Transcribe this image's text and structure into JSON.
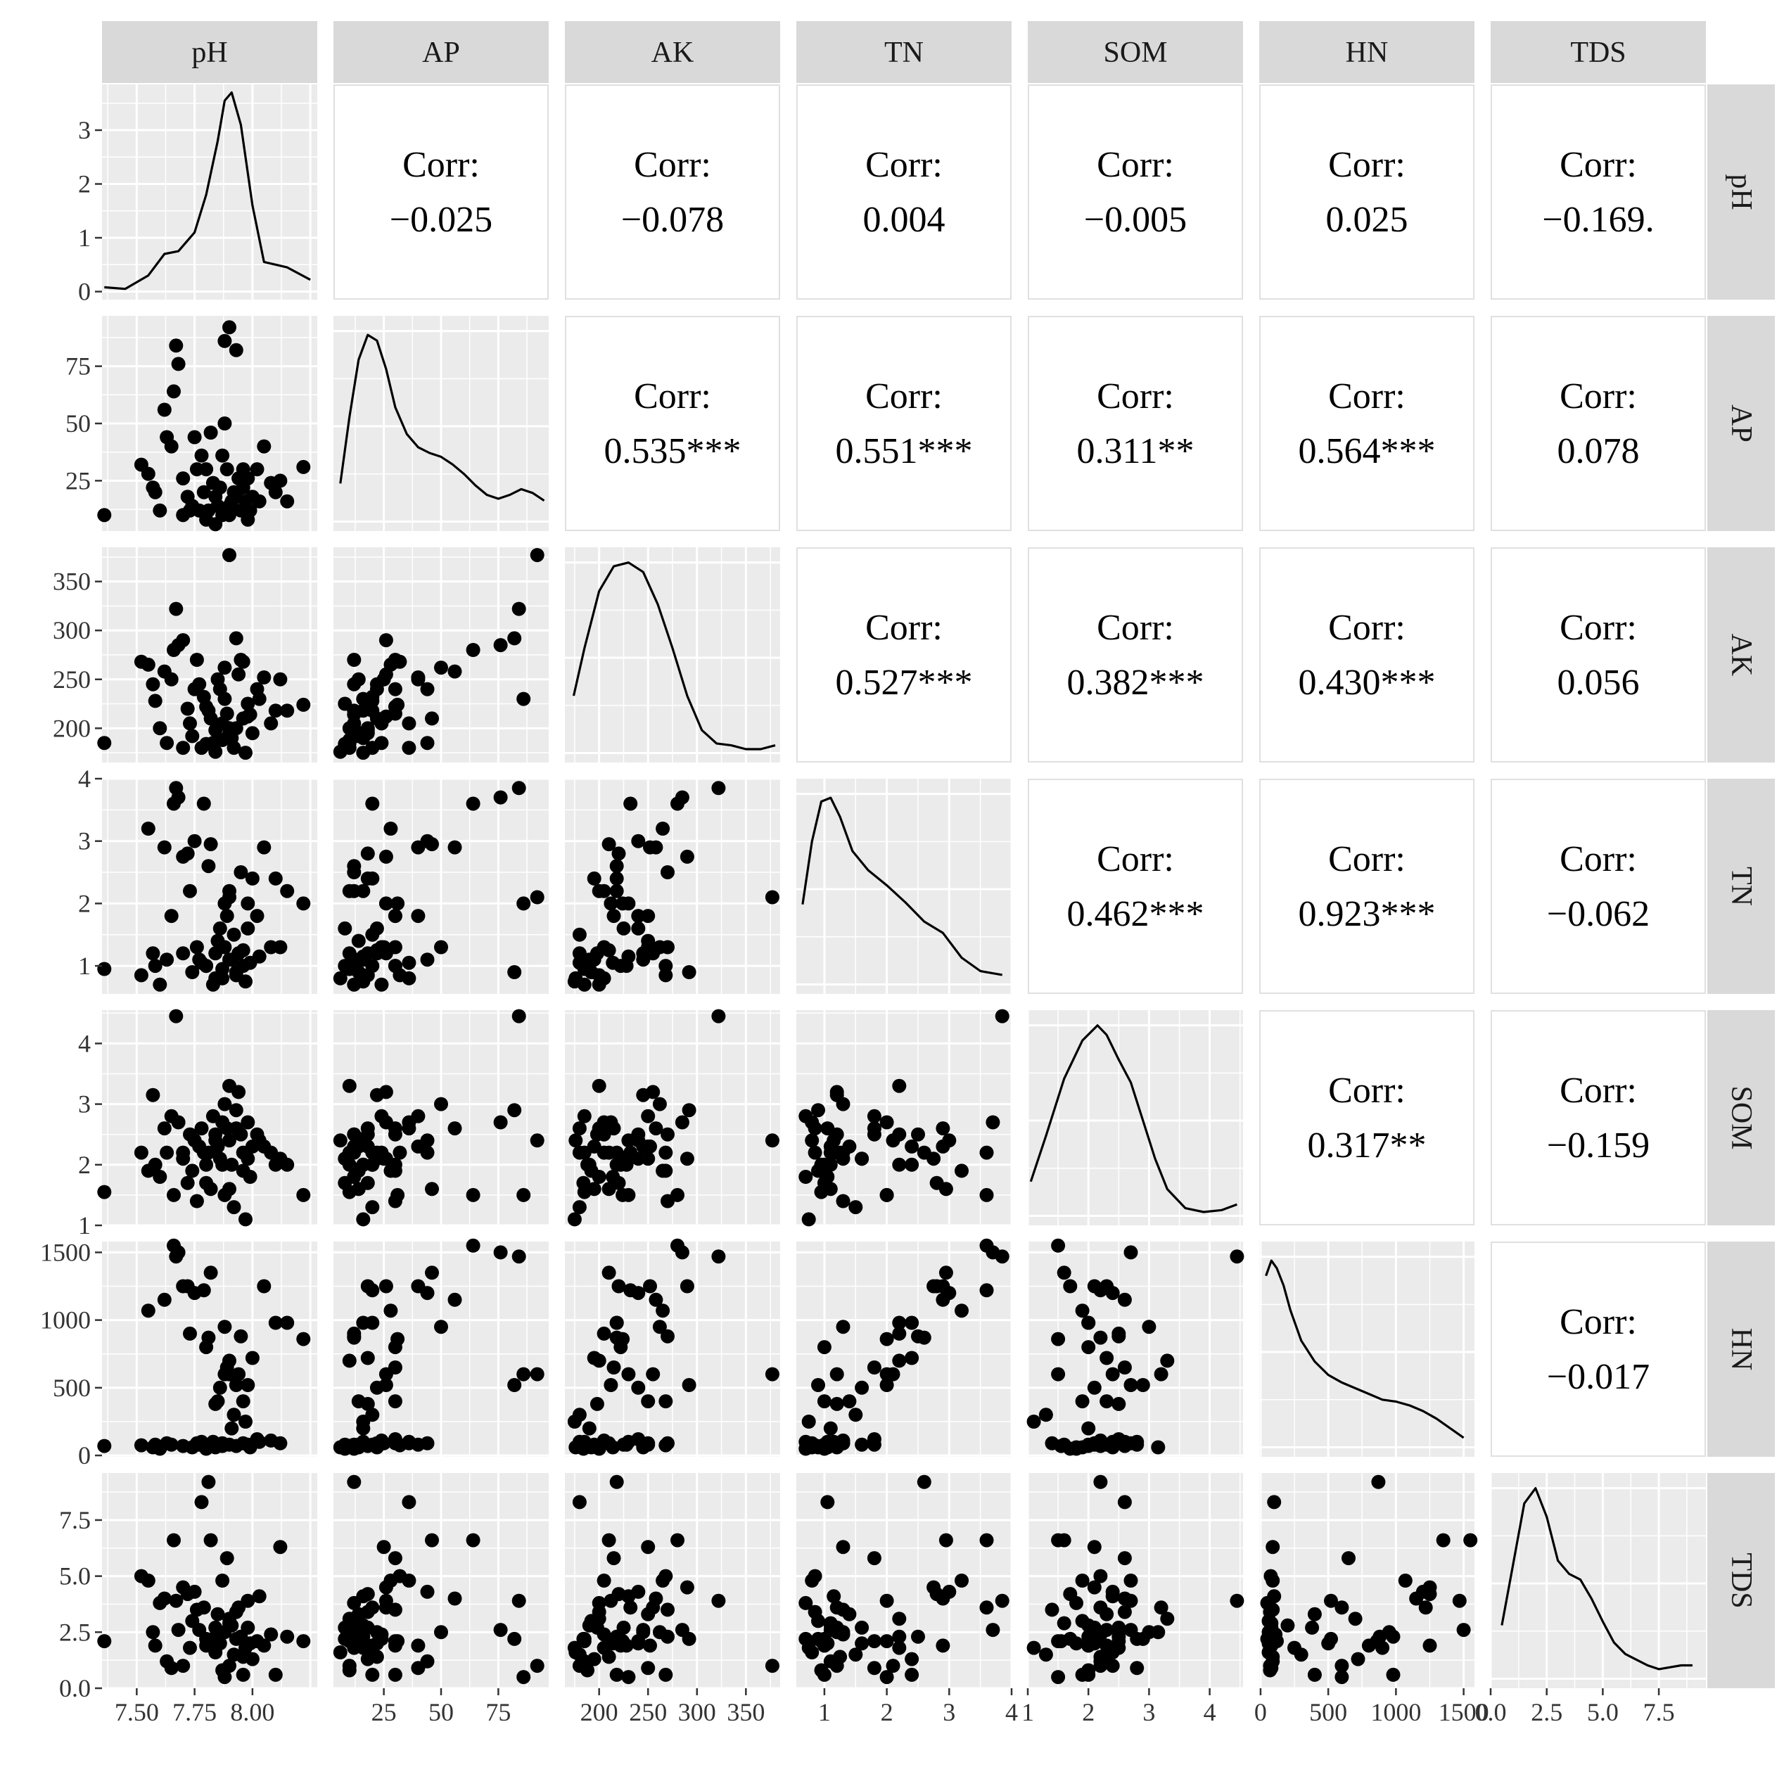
{
  "chart_data": {
    "type": "scatter-matrix",
    "variables": [
      "pH",
      "AP",
      "AK",
      "TN",
      "SOM",
      "HN",
      "TDS"
    ],
    "corr_prefix": "Corr:",
    "correlations": [
      {
        "row": "pH",
        "col": "AP",
        "value": "−0.025"
      },
      {
        "row": "pH",
        "col": "AK",
        "value": "−0.078"
      },
      {
        "row": "pH",
        "col": "TN",
        "value": "0.004"
      },
      {
        "row": "pH",
        "col": "SOM",
        "value": "−0.005"
      },
      {
        "row": "pH",
        "col": "HN",
        "value": "0.025"
      },
      {
        "row": "pH",
        "col": "TDS",
        "value": "−0.169."
      },
      {
        "row": "AP",
        "col": "AK",
        "value": "0.535***"
      },
      {
        "row": "AP",
        "col": "TN",
        "value": "0.551***"
      },
      {
        "row": "AP",
        "col": "SOM",
        "value": "0.311**"
      },
      {
        "row": "AP",
        "col": "HN",
        "value": "0.564***"
      },
      {
        "row": "AP",
        "col": "TDS",
        "value": "0.078"
      },
      {
        "row": "AK",
        "col": "TN",
        "value": "0.527***"
      },
      {
        "row": "AK",
        "col": "SOM",
        "value": "0.382***"
      },
      {
        "row": "AK",
        "col": "HN",
        "value": "0.430***"
      },
      {
        "row": "AK",
        "col": "TDS",
        "value": "0.056"
      },
      {
        "row": "TN",
        "col": "SOM",
        "value": "0.462***"
      },
      {
        "row": "TN",
        "col": "HN",
        "value": "0.923***"
      },
      {
        "row": "TN",
        "col": "TDS",
        "value": "−0.062"
      },
      {
        "row": "SOM",
        "col": "HN",
        "value": "0.317**"
      },
      {
        "row": "SOM",
        "col": "TDS",
        "value": "−0.159"
      },
      {
        "row": "HN",
        "col": "TDS",
        "value": "−0.017"
      }
    ],
    "axes": {
      "pH": {
        "range": [
          7.35,
          8.28
        ],
        "ticks": [
          7.5,
          7.75,
          8.0
        ],
        "tick_labels": [
          "7.50",
          "7.75",
          "8.00"
        ]
      },
      "AP": {
        "range": [
          3,
          97
        ],
        "ticks": [
          25,
          50,
          75
        ],
        "tick_labels": [
          "25",
          "50",
          "75"
        ]
      },
      "AK": {
        "range": [
          165,
          385
        ],
        "ticks": [
          200,
          250,
          300,
          350
        ],
        "tick_labels": [
          "200",
          "250",
          "300",
          "350"
        ]
      },
      "TN": {
        "range": [
          0.55,
          4.0
        ],
        "ticks": [
          1,
          2,
          3,
          4
        ],
        "tick_labels": [
          "1",
          "2",
          "3",
          "4"
        ]
      },
      "SOM": {
        "range": [
          1.0,
          4.55
        ],
        "ticks": [
          1,
          2,
          3,
          4
        ],
        "tick_labels": [
          "1",
          "2",
          "3",
          "4"
        ]
      },
      "HN": {
        "range": [
          -10,
          1580
        ],
        "ticks": [
          0,
          500,
          1000,
          1500
        ],
        "tick_labels": [
          "0",
          "500",
          "1000",
          "1500"
        ]
      },
      "TDS": {
        "range": [
          0.0,
          9.6
        ],
        "ticks": [
          0.0,
          2.5,
          5.0,
          7.5
        ],
        "tick_labels": [
          "0.0",
          "2.5",
          "5.0",
          "7.5"
        ]
      }
    },
    "density_ticks": {
      "ticks": [
        0,
        1,
        2,
        3
      ],
      "tick_labels": [
        "0",
        "1",
        "2",
        "3"
      ],
      "range": [
        -0.15,
        3.85
      ]
    },
    "densities": {
      "pH": {
        "x": [
          7.36,
          7.45,
          7.55,
          7.62,
          7.68,
          7.75,
          7.8,
          7.85,
          7.88,
          7.91,
          7.95,
          8.0,
          8.05,
          8.15,
          8.25
        ],
        "y": [
          0.08,
          0.05,
          0.3,
          0.7,
          0.75,
          1.1,
          1.8,
          2.8,
          3.55,
          3.7,
          3.1,
          1.6,
          0.55,
          0.45,
          0.22
        ]
      },
      "AP": {
        "x": [
          6,
          10,
          14,
          18,
          22,
          26,
          30,
          35,
          40,
          45,
          50,
          55,
          60,
          65,
          70,
          75,
          80,
          85,
          90,
          95
        ],
        "y": [
          0.2,
          0.55,
          0.85,
          0.98,
          0.95,
          0.8,
          0.6,
          0.46,
          0.39,
          0.36,
          0.34,
          0.3,
          0.25,
          0.19,
          0.14,
          0.12,
          0.14,
          0.17,
          0.15,
          0.11
        ]
      },
      "AK": {
        "x": [
          174,
          185,
          200,
          215,
          230,
          245,
          260,
          275,
          290,
          305,
          320,
          335,
          350,
          365,
          380
        ],
        "y": [
          0.3,
          0.55,
          0.85,
          0.98,
          1.0,
          0.95,
          0.78,
          0.55,
          0.3,
          0.12,
          0.05,
          0.04,
          0.02,
          0.02,
          0.04
        ]
      },
      "TN": {
        "x": [
          0.65,
          0.8,
          0.95,
          1.1,
          1.25,
          1.45,
          1.7,
          2.0,
          2.3,
          2.6,
          2.9,
          3.2,
          3.5,
          3.85
        ],
        "y": [
          0.42,
          0.75,
          0.96,
          0.98,
          0.88,
          0.7,
          0.6,
          0.52,
          0.43,
          0.33,
          0.27,
          0.14,
          0.07,
          0.05
        ]
      },
      "SOM": {
        "x": [
          1.05,
          1.3,
          1.6,
          1.9,
          2.15,
          2.3,
          2.5,
          2.7,
          2.9,
          3.1,
          3.3,
          3.6,
          3.9,
          4.2,
          4.45
        ],
        "y": [
          0.18,
          0.42,
          0.72,
          0.92,
          1.0,
          0.95,
          0.82,
          0.7,
          0.5,
          0.3,
          0.14,
          0.04,
          0.02,
          0.03,
          0.06
        ]
      },
      "HN": {
        "x": [
          40,
          80,
          120,
          170,
          220,
          300,
          400,
          500,
          600,
          700,
          800,
          900,
          1000,
          1100,
          1200,
          1300,
          1400,
          1500
        ],
        "y": [
          0.9,
          0.98,
          0.94,
          0.85,
          0.72,
          0.56,
          0.45,
          0.38,
          0.34,
          0.31,
          0.28,
          0.25,
          0.24,
          0.22,
          0.19,
          0.15,
          0.1,
          0.05
        ]
      },
      "TDS": {
        "x": [
          0.5,
          1.0,
          1.5,
          2.0,
          2.5,
          3.0,
          3.5,
          4.0,
          4.5,
          5.0,
          5.5,
          6.0,
          6.5,
          7.0,
          7.5,
          8.0,
          8.5,
          9.0
        ],
        "y": [
          0.28,
          0.6,
          0.92,
          1.0,
          0.85,
          0.62,
          0.55,
          0.52,
          0.42,
          0.3,
          0.19,
          0.13,
          0.1,
          0.07,
          0.05,
          0.06,
          0.07,
          0.07
        ]
      }
    },
    "observations": [
      {
        "pH": 7.36,
        "AP": 10,
        "AK": 185,
        "TN": 0.95,
        "SOM": 1.55,
        "HN": 70,
        "TDS": 2.1
      },
      {
        "pH": 7.52,
        "AP": 32,
        "AK": 268,
        "TN": 0.85,
        "SOM": 2.2,
        "HN": 75,
        "TDS": 5.0
      },
      {
        "pH": 7.55,
        "AP": 28,
        "AK": 265,
        "TN": 3.2,
        "SOM": 1.9,
        "HN": 1070,
        "TDS": 4.8
      },
      {
        "pH": 7.57,
        "AP": 22,
        "AK": 245,
        "TN": 1.2,
        "SOM": 3.15,
        "HN": 60,
        "TDS": 2.5
      },
      {
        "pH": 7.58,
        "AP": 20,
        "AK": 228,
        "TN": 1.0,
        "SOM": 2.0,
        "HN": 80,
        "TDS": 1.9
      },
      {
        "pH": 7.6,
        "AP": 12,
        "AK": 200,
        "TN": 0.7,
        "SOM": 1.8,
        "HN": 50,
        "TDS": 3.8
      },
      {
        "pH": 7.62,
        "AP": 56,
        "AK": 258,
        "TN": 2.9,
        "SOM": 2.6,
        "HN": 1150,
        "TDS": 4.0
      },
      {
        "pH": 7.63,
        "AP": 44,
        "AK": 185,
        "TN": 1.1,
        "SOM": 2.2,
        "HN": 90,
        "TDS": 1.2
      },
      {
        "pH": 7.65,
        "AP": 40,
        "AK": 250,
        "TN": 1.8,
        "SOM": 2.8,
        "HN": 80,
        "TDS": 0.9
      },
      {
        "pH": 7.66,
        "AP": 64,
        "AK": 280,
        "TN": 3.6,
        "SOM": 1.5,
        "HN": 1550,
        "TDS": 6.6
      },
      {
        "pH": 7.67,
        "AP": 84,
        "AK": 322,
        "TN": 3.85,
        "SOM": 4.45,
        "HN": 1470,
        "TDS": 3.9
      },
      {
        "pH": 7.68,
        "AP": 76,
        "AK": 285,
        "TN": 3.7,
        "SOM": 2.7,
        "HN": 1500,
        "TDS": 2.6
      },
      {
        "pH": 7.7,
        "AP": 26,
        "AK": 290,
        "TN": 2.75,
        "SOM": 2.1,
        "HN": 1250,
        "TDS": 4.5
      },
      {
        "pH": 7.72,
        "AP": 18,
        "AK": 220,
        "TN": 2.8,
        "SOM": 1.7,
        "HN": 1250,
        "TDS": 4.2
      },
      {
        "pH": 7.73,
        "AP": 12,
        "AK": 205,
        "TN": 2.2,
        "SOM": 2.5,
        "HN": 900,
        "TDS": 1.8
      },
      {
        "pH": 7.75,
        "AP": 44,
        "AK": 240,
        "TN": 3.0,
        "SOM": 2.4,
        "HN": 1200,
        "TDS": 4.3
      },
      {
        "pH": 7.76,
        "AP": 30,
        "AK": 270,
        "TN": 1.3,
        "SOM": 1.4,
        "HN": 90,
        "TDS": 3.5
      },
      {
        "pH": 7.77,
        "AP": 12,
        "AK": 245,
        "TN": 1.1,
        "SOM": 2.3,
        "HN": 80,
        "TDS": 2.6
      },
      {
        "pH": 7.78,
        "AP": 36,
        "AK": 180,
        "TN": 1.05,
        "SOM": 2.6,
        "HN": 100,
        "TDS": 8.3
      },
      {
        "pH": 7.79,
        "AP": 20,
        "AK": 232,
        "TN": 3.6,
        "SOM": 2.2,
        "HN": 1220,
        "TDS": 3.6
      },
      {
        "pH": 7.8,
        "AP": 30,
        "AK": 222,
        "TN": 1.0,
        "SOM": 2.0,
        "HN": 800,
        "TDS": 1.9
      },
      {
        "pH": 7.81,
        "AP": 12,
        "AK": 218,
        "TN": 2.6,
        "SOM": 2.2,
        "HN": 870,
        "TDS": 9.2
      },
      {
        "pH": 7.82,
        "AP": 46,
        "AK": 210,
        "TN": 2.95,
        "SOM": 1.6,
        "HN": 1350,
        "TDS": 6.6
      },
      {
        "pH": 7.83,
        "AP": 24,
        "AK": 185,
        "TN": 0.7,
        "SOM": 2.8,
        "HN": 100,
        "TDS": 2.2
      },
      {
        "pH": 7.84,
        "AP": 18,
        "AK": 198,
        "TN": 1.2,
        "SOM": 2.5,
        "HN": 380,
        "TDS": 2.7
      },
      {
        "pH": 7.85,
        "AP": 14,
        "AK": 250,
        "TN": 1.4,
        "SOM": 2.3,
        "HN": 400,
        "TDS": 3.3
      },
      {
        "pH": 7.86,
        "AP": 22,
        "AK": 240,
        "TN": 1.6,
        "SOM": 2.1,
        "HN": 500,
        "TDS": 2.0
      },
      {
        "pH": 7.87,
        "AP": 36,
        "AK": 205,
        "TN": 0.8,
        "SOM": 2.7,
        "HN": 90,
        "TDS": 4.8
      },
      {
        "pH": 7.88,
        "AP": 50,
        "AK": 262,
        "TN": 1.3,
        "SOM": 3.0,
        "HN": 950,
        "TDS": 2.5
      },
      {
        "pH": 7.88,
        "AP": 86,
        "AK": 230,
        "TN": 2.0,
        "SOM": 1.5,
        "HN": 600,
        "TDS": 0.5
      },
      {
        "pH": 7.89,
        "AP": 30,
        "AK": 215,
        "TN": 1.8,
        "SOM": 2.6,
        "HN": 650,
        "TDS": 5.8
      },
      {
        "pH": 7.9,
        "AP": 10,
        "AK": 200,
        "TN": 2.2,
        "SOM": 3.3,
        "HN": 700,
        "TDS": 3.1
      },
      {
        "pH": 7.9,
        "AP": 92,
        "AK": 377,
        "TN": 2.1,
        "SOM": 2.4,
        "HN": 600,
        "TDS": 1.0
      },
      {
        "pH": 7.91,
        "AP": 16,
        "AK": 190,
        "TN": 1.1,
        "SOM": 2.0,
        "HN": 200,
        "TDS": 2.8
      },
      {
        "pH": 7.92,
        "AP": 20,
        "AK": 180,
        "TN": 1.5,
        "SOM": 1.3,
        "HN": 300,
        "TDS": 1.5
      },
      {
        "pH": 7.93,
        "AP": 82,
        "AK": 292,
        "TN": 0.9,
        "SOM": 2.9,
        "HN": 520,
        "TDS": 2.2
      },
      {
        "pH": 7.94,
        "AP": 26,
        "AK": 255,
        "TN": 1.2,
        "SOM": 3.2,
        "HN": 600,
        "TDS": 3.6
      },
      {
        "pH": 7.95,
        "AP": 12,
        "AK": 270,
        "TN": 2.5,
        "SOM": 2.5,
        "HN": 880,
        "TDS": 2.3
      },
      {
        "pH": 7.96,
        "AP": 30,
        "AK": 268,
        "TN": 1.0,
        "SOM": 1.9,
        "HN": 400,
        "TDS": 0.6
      },
      {
        "pH": 7.97,
        "AP": 16,
        "AK": 175,
        "TN": 0.75,
        "SOM": 1.1,
        "HN": 250,
        "TDS": 1.8
      },
      {
        "pH": 7.98,
        "AP": 8,
        "AK": 225,
        "TN": 1.6,
        "SOM": 2.1,
        "HN": 80,
        "TDS": 2.7
      },
      {
        "pH": 7.98,
        "AP": 26,
        "AK": 212,
        "TN": 2.0,
        "SOM": 2.7,
        "HN": 520,
        "TDS": 3.9
      },
      {
        "pH": 8.0,
        "AP": 18,
        "AK": 195,
        "TN": 2.4,
        "SOM": 2.3,
        "HN": 720,
        "TDS": 1.3
      },
      {
        "pH": 8.02,
        "AP": 30,
        "AK": 240,
        "TN": 1.8,
        "SOM": 2.5,
        "HN": 120,
        "TDS": 2.1
      },
      {
        "pH": 8.05,
        "AP": 40,
        "AK": 252,
        "TN": 2.9,
        "SOM": 2.3,
        "HN": 1250,
        "TDS": 1.9
      },
      {
        "pH": 8.08,
        "AP": 24,
        "AK": 205,
        "TN": 1.3,
        "SOM": 2.2,
        "HN": 110,
        "TDS": 2.4
      },
      {
        "pH": 8.1,
        "AP": 20,
        "AK": 218,
        "TN": 2.4,
        "SOM": 2.0,
        "HN": 980,
        "TDS": 0.6
      },
      {
        "pH": 8.12,
        "AP": 25,
        "AK": 250,
        "TN": 1.3,
        "SOM": 2.1,
        "HN": 90,
        "TDS": 6.3
      },
      {
        "pH": 8.15,
        "AP": 16,
        "AK": 218,
        "TN": 2.2,
        "SOM": 2.0,
        "HN": 980,
        "TDS": 2.3
      },
      {
        "pH": 8.22,
        "AP": 31,
        "AK": 224,
        "TN": 2.0,
        "SOM": 1.5,
        "HN": 860,
        "TDS": 2.1
      },
      {
        "pH": 7.7,
        "AP": 10,
        "AK": 180,
        "TN": 1.2,
        "SOM": 2.2,
        "HN": 70,
        "TDS": 1.0
      },
      {
        "pH": 7.74,
        "AP": 14,
        "AK": 192,
        "TN": 0.9,
        "SOM": 1.9,
        "HN": 60,
        "TDS": 3.0
      },
      {
        "pH": 7.8,
        "AP": 8,
        "AK": 184,
        "TN": 1.0,
        "SOM": 1.7,
        "HN": 50,
        "TDS": 2.2
      },
      {
        "pH": 7.84,
        "AP": 6,
        "AK": 176,
        "TN": 0.8,
        "SOM": 2.4,
        "HN": 60,
        "TDS": 1.6
      },
      {
        "pH": 7.87,
        "AP": 10,
        "AK": 188,
        "TN": 0.95,
        "SOM": 2.0,
        "HN": 70,
        "TDS": 0.8
      },
      {
        "pH": 7.9,
        "AP": 14,
        "AK": 195,
        "TN": 1.1,
        "SOM": 1.6,
        "HN": 80,
        "TDS": 2.9
      },
      {
        "pH": 7.93,
        "AP": 18,
        "AK": 200,
        "TN": 0.85,
        "SOM": 2.6,
        "HN": 70,
        "TDS": 3.4
      },
      {
        "pH": 7.96,
        "AP": 22,
        "AK": 210,
        "TN": 1.25,
        "SOM": 2.2,
        "HN": 90,
        "TDS": 1.4
      },
      {
        "pH": 7.99,
        "AP": 12,
        "AK": 214,
        "TN": 1.05,
        "SOM": 1.8,
        "HN": 60,
        "TDS": 2.0
      },
      {
        "pH": 8.03,
        "AP": 16,
        "AK": 230,
        "TN": 1.15,
        "SOM": 2.4,
        "HN": 100,
        "TDS": 4.1
      }
    ]
  }
}
